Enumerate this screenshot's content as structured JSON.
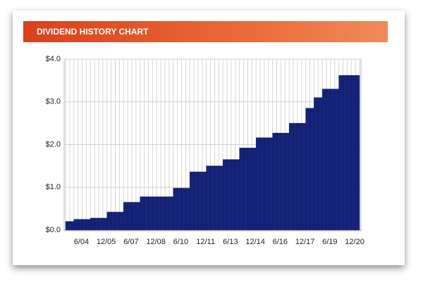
{
  "chart_data": {
    "type": "bar",
    "title": "DIVIDEND HISTORY CHART",
    "categories": [
      null,
      null,
      null,
      null,
      "6/04",
      null,
      null,
      null,
      null,
      null,
      "12/05",
      null,
      null,
      null,
      null,
      null,
      "6/07",
      null,
      null,
      null,
      null,
      null,
      "12/08",
      null,
      null,
      null,
      null,
      null,
      "6/10",
      null,
      null,
      null,
      null,
      null,
      "12/11",
      null,
      null,
      null,
      null,
      null,
      "6/13",
      null,
      null,
      null,
      null,
      null,
      "12/14",
      null,
      null,
      null,
      null,
      null,
      "6/16",
      null,
      null,
      null,
      null,
      null,
      "12/17",
      null,
      null,
      null,
      null,
      null,
      "6/19",
      null,
      null,
      null,
      null,
      null,
      "12/20"
    ],
    "values": [
      0.2,
      0.2,
      0.25,
      0.25,
      0.25,
      0.25,
      0.28,
      0.28,
      0.28,
      0.28,
      0.42,
      0.42,
      0.42,
      0.42,
      0.65,
      0.65,
      0.65,
      0.65,
      0.78,
      0.78,
      0.78,
      0.78,
      0.78,
      0.78,
      0.78,
      0.78,
      0.98,
      0.98,
      0.98,
      0.98,
      1.36,
      1.36,
      1.36,
      1.36,
      1.5,
      1.5,
      1.5,
      1.5,
      1.65,
      1.65,
      1.65,
      1.65,
      1.92,
      1.92,
      1.92,
      1.92,
      2.16,
      2.16,
      2.16,
      2.16,
      2.27,
      2.27,
      2.27,
      2.27,
      2.5,
      2.5,
      2.5,
      2.5,
      2.85,
      2.85,
      3.1,
      3.1,
      3.3,
      3.3,
      3.3,
      3.3,
      3.62,
      3.62,
      3.62,
      3.62,
      3.62
    ],
    "color": "#16237a",
    "ylim": [
      0,
      4
    ],
    "yticks": [
      {
        "value": 0,
        "label": "$0.0"
      },
      {
        "value": 1,
        "label": "$1.0"
      },
      {
        "value": 2,
        "label": "$2.0"
      },
      {
        "value": 3,
        "label": "$3.0"
      },
      {
        "value": 4,
        "label": "$4.0"
      }
    ],
    "grid": true
  }
}
